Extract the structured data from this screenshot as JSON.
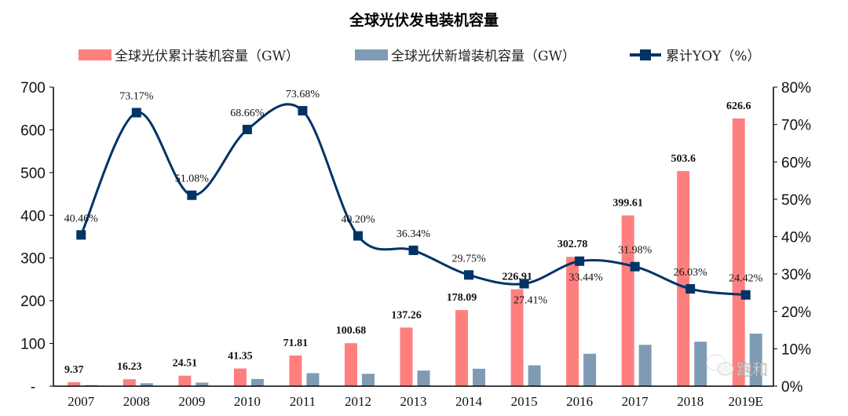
{
  "chart_data": {
    "type": "bar+line",
    "title": "全球光伏发电装机容量",
    "categories": [
      "2007",
      "2008",
      "2009",
      "2010",
      "2011",
      "2012",
      "2013",
      "2014",
      "2015",
      "2016",
      "2017",
      "2018",
      "2019E"
    ],
    "series": [
      {
        "name": "全球光伏累计装机容量（GW）",
        "type": "bar",
        "axis": "left",
        "color": "#ff7f7f",
        "values": [
          9.37,
          16.23,
          24.51,
          41.35,
          71.81,
          100.68,
          137.26,
          178.09,
          226.91,
          302.78,
          399.61,
          503.6,
          626.6
        ],
        "labels": [
          "9.37",
          "16.23",
          "24.51",
          "41.35",
          "71.81",
          "100.68",
          "137.26",
          "178.09",
          "226.91",
          "302.78",
          "399.61",
          "503.6",
          "626.6"
        ]
      },
      {
        "name": "全球光伏新增装机容量（GW）",
        "type": "bar",
        "axis": "left",
        "color": "#7f9ab4",
        "values": [
          2.5,
          6.9,
          8.3,
          16.8,
          30.5,
          28.9,
          36.6,
          40.8,
          48.8,
          75.9,
          96.8,
          104,
          123
        ]
      },
      {
        "name": "累计YOY（%）",
        "type": "line",
        "axis": "right",
        "color": "#003366",
        "marker": "square",
        "values": [
          40.46,
          73.17,
          51.08,
          68.66,
          73.68,
          40.2,
          36.34,
          29.75,
          27.41,
          33.44,
          31.98,
          26.03,
          24.42
        ],
        "labels": [
          "40.46%",
          "73.17%",
          "51.08%",
          "68.66%",
          "73.68%",
          "40.20%",
          "36.34%",
          "29.75%",
          "27.41%",
          "33.44%",
          "31.98%",
          "26.03%",
          "24.42%"
        ]
      }
    ],
    "yleft": {
      "range": [
        0,
        700
      ],
      "ticks": [
        "-",
        "100",
        "200",
        "300",
        "400",
        "500",
        "600",
        "700"
      ]
    },
    "yright": {
      "range": [
        0,
        80
      ],
      "ticks": [
        "0%",
        "10%",
        "20%",
        "30%",
        "40%",
        "50%",
        "60%",
        "70%",
        "80%"
      ]
    },
    "legend_placement": "top",
    "grid": false
  },
  "watermark": "跑和"
}
